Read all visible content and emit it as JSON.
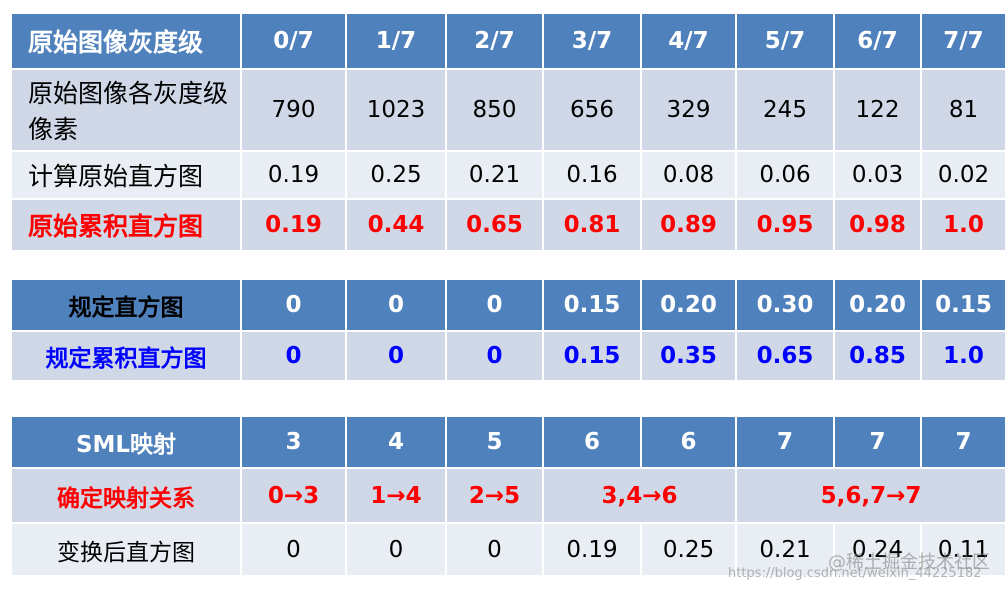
{
  "tables": [
    {
      "header": [
        "原始图像灰度级",
        "0/7",
        "1/7",
        "2/7",
        "3/7",
        "4/7",
        "5/7",
        "6/7",
        "7/7"
      ],
      "rows": [
        [
          "原始图像各灰度级像素",
          "790",
          "1023",
          "850",
          "656",
          "329",
          "245",
          "122",
          "81"
        ],
        [
          "计算原始直方图",
          "0.19",
          "0.25",
          "0.21",
          "0.16",
          "0.08",
          "0.06",
          "0.03",
          "0.02"
        ],
        [
          "原始累积直方图",
          "0.19",
          "0.44",
          "0.65",
          "0.81",
          "0.89",
          "0.95",
          "0.98",
          "1.0"
        ]
      ]
    },
    {
      "header": [
        "规定直方图",
        "0",
        "0",
        "0",
        "0.15",
        "0.20",
        "0.30",
        "0.20",
        "0.15"
      ],
      "rows": [
        [
          "规定累积直方图",
          "0",
          "0",
          "0",
          "0.15",
          "0.35",
          "0.65",
          "0.85",
          "1.0"
        ]
      ]
    },
    {
      "header": [
        "SML映射",
        "3",
        "4",
        "5",
        "6",
        "6",
        "7",
        "7",
        "7"
      ],
      "rows": [
        [
          "确定映射关系",
          "0→3",
          "1→4",
          "2→5",
          "3,4→6",
          "5,6,7→7"
        ],
        [
          "变换后直方图",
          "0",
          "0",
          "0",
          "0.19",
          "0.25",
          "0.21",
          "0.24",
          "0.11"
        ]
      ]
    }
  ],
  "watermark": {
    "site": "@稀土掘金技术社区",
    "url": "https://blog.csdn.net/weixin_44225182"
  }
}
